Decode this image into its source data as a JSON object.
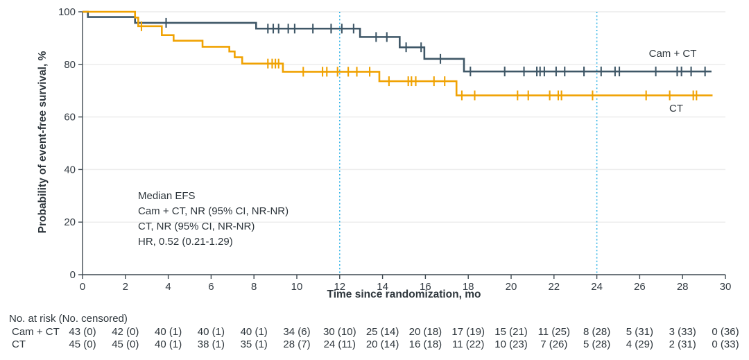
{
  "chart_data": {
    "type": "line",
    "subtype": "kaplan-meier-step",
    "title": "",
    "xlabel": "Time since randomization, mo",
    "ylabel": "Probability of event-free survival, %",
    "xlim": [
      0,
      30
    ],
    "ylim": [
      0,
      100
    ],
    "x_ticks": [
      0,
      2,
      4,
      6,
      8,
      10,
      12,
      14,
      16,
      18,
      20,
      22,
      24,
      26,
      28,
      30
    ],
    "y_ticks": [
      0,
      20,
      40,
      60,
      80,
      100
    ],
    "grid": "horizontal-light",
    "grid_color": "#ececec",
    "axis_color": "#3e4951",
    "reference_lines_x": [
      12,
      24
    ],
    "reference_line_color": "#35b4e6",
    "annotation": [
      "Median EFS",
      "Cam + CT, NR (95% CI, NR-NR)",
      "CT, NR (95% CI, NR-NR)",
      "HR, 0.52 (0.21-1.29)"
    ],
    "series": [
      {
        "name": "Cam + CT",
        "color": "#3f5767",
        "steps": [
          [
            0,
            100
          ],
          [
            0.25,
            98
          ],
          [
            2.45,
            95.8
          ],
          [
            8.1,
            93.6
          ],
          [
            12.95,
            90.4
          ],
          [
            14.8,
            86.5
          ],
          [
            15.95,
            82.1
          ],
          [
            17.8,
            77.3
          ],
          [
            29.35,
            77.3
          ]
        ],
        "censor_marks": [
          [
            3.9,
            95.8
          ],
          [
            8.65,
            93.6
          ],
          [
            8.9,
            93.6
          ],
          [
            9.15,
            93.6
          ],
          [
            9.6,
            93.6
          ],
          [
            9.9,
            93.6
          ],
          [
            10.75,
            93.6
          ],
          [
            11.6,
            93.6
          ],
          [
            12.1,
            93.6
          ],
          [
            12.65,
            93.6
          ],
          [
            13.7,
            90.4
          ],
          [
            14.2,
            90.4
          ],
          [
            15.1,
            86.5
          ],
          [
            15.8,
            86.5
          ],
          [
            16.7,
            82.1
          ],
          [
            18.1,
            77.3
          ],
          [
            19.7,
            77.3
          ],
          [
            20.6,
            77.3
          ],
          [
            21.2,
            77.3
          ],
          [
            21.35,
            77.3
          ],
          [
            21.55,
            77.3
          ],
          [
            22.1,
            77.3
          ],
          [
            22.5,
            77.3
          ],
          [
            23.4,
            77.3
          ],
          [
            24.2,
            77.3
          ],
          [
            24.85,
            77.3
          ],
          [
            25.05,
            77.3
          ],
          [
            26.75,
            77.3
          ],
          [
            27.75,
            77.3
          ],
          [
            27.95,
            77.3
          ],
          [
            28.4,
            77.3
          ],
          [
            29.05,
            77.3
          ]
        ]
      },
      {
        "name": "CT",
        "color": "#f0a202",
        "steps": [
          [
            0,
            100
          ],
          [
            2.45,
            97.8
          ],
          [
            2.6,
            94.5
          ],
          [
            3.7,
            91.1
          ],
          [
            4.25,
            89
          ],
          [
            5.6,
            86.7
          ],
          [
            6.85,
            84.9
          ],
          [
            7.1,
            82.7
          ],
          [
            7.45,
            80.3
          ],
          [
            9.35,
            77.2
          ],
          [
            13.85,
            73.6
          ],
          [
            17.45,
            68.2
          ],
          [
            29.4,
            68.2
          ]
        ],
        "censor_marks": [
          [
            2.75,
            94.5
          ],
          [
            8.65,
            80.3
          ],
          [
            8.85,
            80.3
          ],
          [
            9.0,
            80.3
          ],
          [
            9.15,
            80.3
          ],
          [
            10.3,
            77.2
          ],
          [
            11.2,
            77.2
          ],
          [
            11.4,
            77.2
          ],
          [
            11.9,
            77.2
          ],
          [
            12.4,
            77.2
          ],
          [
            12.8,
            77.2
          ],
          [
            13.4,
            77.2
          ],
          [
            14.3,
            73.6
          ],
          [
            15.2,
            73.6
          ],
          [
            15.35,
            73.6
          ],
          [
            15.55,
            73.6
          ],
          [
            16.4,
            73.6
          ],
          [
            16.9,
            73.6
          ],
          [
            17.7,
            68.2
          ],
          [
            18.3,
            68.2
          ],
          [
            20.3,
            68.2
          ],
          [
            20.8,
            68.2
          ],
          [
            21.8,
            68.2
          ],
          [
            22.2,
            68.2
          ],
          [
            22.35,
            68.2
          ],
          [
            23.8,
            68.2
          ],
          [
            26.3,
            68.2
          ],
          [
            27.4,
            68.2
          ],
          [
            28.5,
            68.2
          ],
          [
            28.65,
            68.2
          ]
        ]
      }
    ],
    "legend_position": "curve-end-labels"
  },
  "risk_table": {
    "header": "No. at risk (No. censored)",
    "time_points": [
      0,
      2,
      4,
      6,
      8,
      10,
      12,
      14,
      16,
      18,
      20,
      22,
      24,
      26,
      28,
      30
    ],
    "rows": [
      {
        "label": "Cam + CT",
        "values": [
          "43 (0)",
          "42 (0)",
          "40 (1)",
          "40 (1)",
          "40 (1)",
          "34 (6)",
          "30 (10)",
          "25 (14)",
          "20 (18)",
          "17 (19)",
          "15 (21)",
          "11 (25)",
          "8 (28)",
          "5 (31)",
          "3 (33)",
          "0 (36)"
        ]
      },
      {
        "label": "CT",
        "values": [
          "45 (0)",
          "45 (0)",
          "40 (1)",
          "38 (1)",
          "35 (1)",
          "28 (7)",
          "24 (11)",
          "20 (14)",
          "16 (18)",
          "11 (22)",
          "10 (23)",
          "7 (26)",
          "5 (28)",
          "4 (29)",
          "2 (31)",
          "0 (33)"
        ]
      }
    ]
  }
}
